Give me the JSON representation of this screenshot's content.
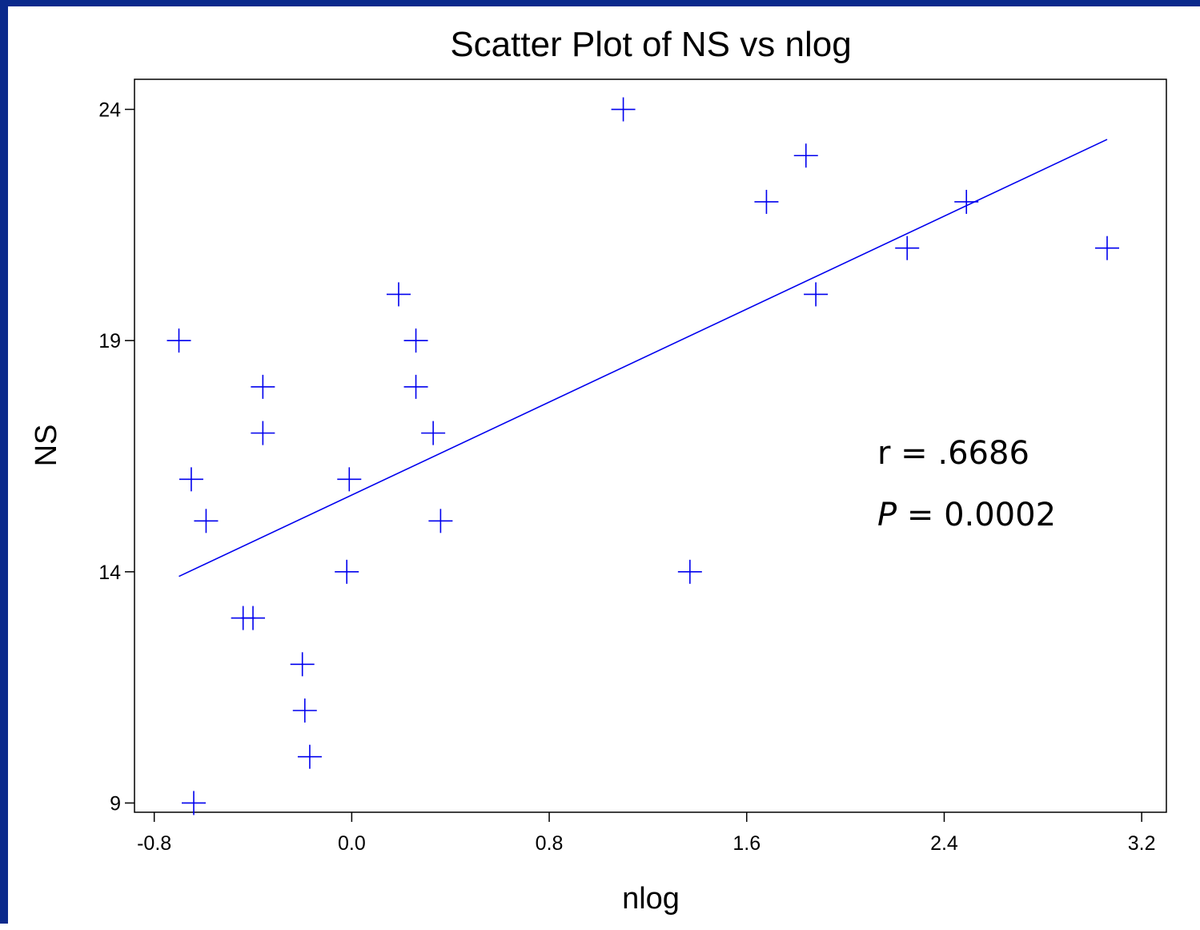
{
  "chart_data": {
    "type": "scatter",
    "title": "Scatter Plot of NS vs nlog",
    "xlabel": "nlog",
    "ylabel": "NS",
    "xlim": [
      -0.88,
      3.3
    ],
    "ylim": [
      8.8,
      24.65
    ],
    "xticks": [
      -0.8,
      0.0,
      0.8,
      1.6,
      2.4,
      3.2
    ],
    "xtick_labels": [
      "-0.8",
      "0.0",
      "0.8",
      "1.6",
      "2.4",
      "3.2"
    ],
    "yticks": [
      9,
      14,
      19,
      24
    ],
    "ytick_labels": [
      "9",
      "14",
      "19",
      "24"
    ],
    "grid": false,
    "marker": "plus",
    "color": "#0000ee",
    "points": [
      {
        "x": -0.7,
        "y": 19
      },
      {
        "x": -0.65,
        "y": 16
      },
      {
        "x": -0.64,
        "y": 9
      },
      {
        "x": -0.59,
        "y": 15.1
      },
      {
        "x": -0.44,
        "y": 13
      },
      {
        "x": -0.4,
        "y": 13
      },
      {
        "x": -0.36,
        "y": 18
      },
      {
        "x": -0.36,
        "y": 17
      },
      {
        "x": -0.2,
        "y": 12
      },
      {
        "x": -0.19,
        "y": 11
      },
      {
        "x": -0.17,
        "y": 10
      },
      {
        "x": -0.02,
        "y": 14
      },
      {
        "x": -0.01,
        "y": 16
      },
      {
        "x": 0.19,
        "y": 20
      },
      {
        "x": 0.26,
        "y": 19
      },
      {
        "x": 0.26,
        "y": 18
      },
      {
        "x": 0.33,
        "y": 17
      },
      {
        "x": 0.36,
        "y": 15.1
      },
      {
        "x": 1.1,
        "y": 24
      },
      {
        "x": 1.37,
        "y": 14
      },
      {
        "x": 1.68,
        "y": 22
      },
      {
        "x": 1.84,
        "y": 23
      },
      {
        "x": 1.88,
        "y": 20
      },
      {
        "x": 2.25,
        "y": 21
      },
      {
        "x": 2.49,
        "y": 22
      },
      {
        "x": 3.06,
        "y": 21
      }
    ],
    "fit_line": {
      "x": [
        -0.7,
        3.06
      ],
      "y": [
        13.9,
        23.35
      ]
    },
    "annotations": [
      {
        "text_r": "r = .6686"
      },
      {
        "text_p_symbol": "P",
        "text_p_value": " = 0.0002"
      }
    ]
  }
}
